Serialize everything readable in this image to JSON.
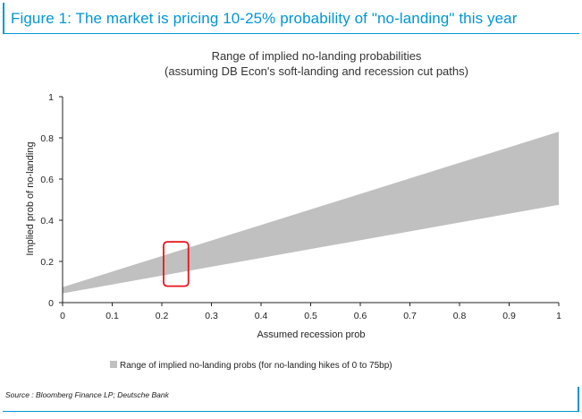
{
  "figure_title": "Figure 1: The market is pricing 10-25% probability of \"no-landing\" this year",
  "source": "Source : Bloomberg Finance LP; Deutsche Bank",
  "colors": {
    "accent": "#0096d6",
    "band": "#c0c0c0",
    "highlight": "#e8141b"
  },
  "chart_data": {
    "type": "area",
    "title": "Range of implied no-landing probabilities",
    "subtitle": "(assuming DB Econ's soft-landing and recession cut paths)",
    "xlabel": "Assumed recession prob",
    "ylabel": "Implied prob of no-landing",
    "xlim": [
      0,
      1
    ],
    "ylim": [
      0,
      1
    ],
    "x_ticks": [
      "0",
      "0.1",
      "0.2",
      "0.3",
      "0.4",
      "0.5",
      "0.6",
      "0.7",
      "0.8",
      "0.9",
      "1"
    ],
    "y_ticks": [
      "0",
      "0.2",
      "0.4",
      "0.6",
      "0.8",
      "1"
    ],
    "grid": false,
    "series": [
      {
        "name": "Range of implied no-landing probs (for no-landing hikes of 0 to 75bp)",
        "x": [
          0,
          1
        ],
        "lower": [
          0.045,
          0.475
        ],
        "upper": [
          0.075,
          0.83
        ]
      }
    ],
    "annotations": [
      {
        "type": "highlight-box",
        "x_range": [
          0.2,
          0.25
        ],
        "y_range": [
          0.08,
          0.295
        ]
      }
    ],
    "legend_position": "bottom"
  }
}
